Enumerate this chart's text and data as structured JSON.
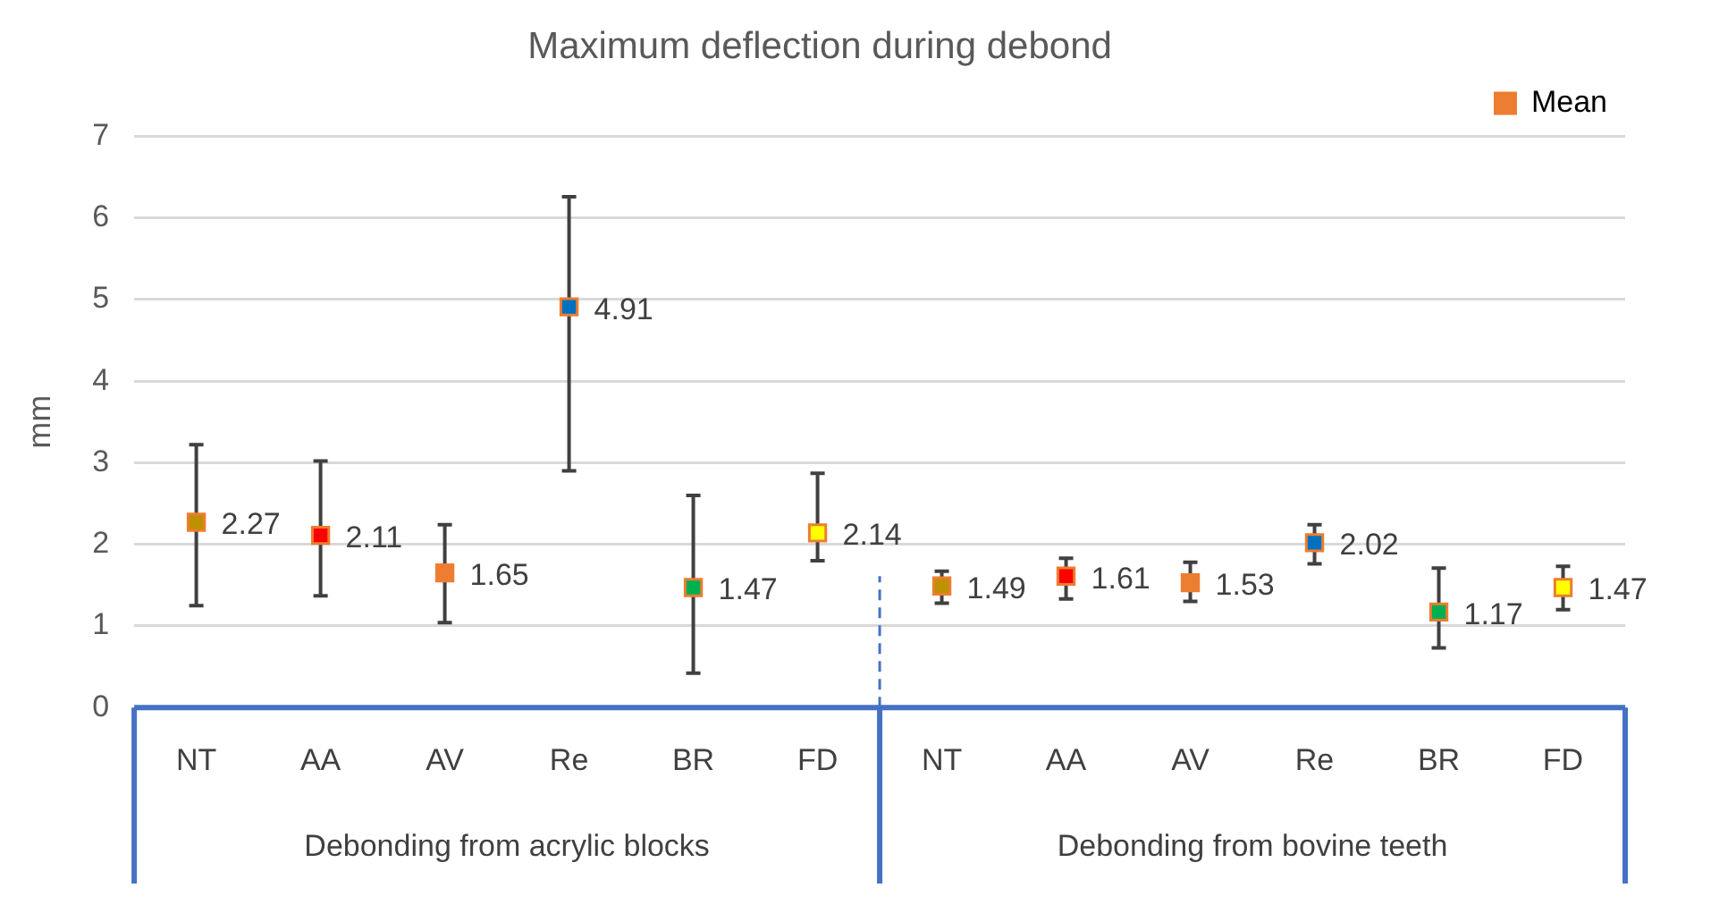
{
  "chart_data": {
    "type": "scatter",
    "title": "Maximum deflection during debond",
    "ylabel": "mm",
    "categories": [
      "NT",
      "AA",
      "AV",
      "Re",
      "BR",
      "FD",
      "NT",
      "AA",
      "AV",
      "Re",
      "BR",
      "FD"
    ],
    "series": [
      {
        "name": "Mean",
        "color": "#ed7d31",
        "colors": [
          "#bf9000",
          "#ff0000",
          "#ed7d31",
          "#0070c0",
          "#00b050",
          "#ffff00",
          "#bf9000",
          "#ff0000",
          "#ed7d31",
          "#0070c0",
          "#00b050",
          "#ffff00"
        ],
        "values": [
          2.27,
          2.11,
          1.65,
          4.91,
          1.47,
          2.14,
          1.49,
          1.61,
          1.53,
          2.02,
          1.17,
          1.47
        ],
        "errors": [
          [
            1.25,
            3.22
          ],
          [
            1.37,
            3.02
          ],
          [
            1.04,
            2.24
          ],
          [
            2.9,
            6.26
          ],
          [
            0.42,
            2.6
          ],
          [
            1.8,
            2.87
          ],
          [
            1.28,
            1.67
          ],
          [
            1.33,
            1.83
          ],
          [
            1.3,
            1.78
          ],
          [
            1.76,
            2.24
          ],
          [
            0.73,
            1.71
          ],
          [
            1.2,
            1.73
          ]
        ]
      }
    ],
    "annotations": [
      "Debonding from acrylic blocks",
      "Debonding from bovine teeth"
    ],
    "ylim": [
      0,
      7
    ],
    "yticks": [
      0,
      1,
      2,
      3,
      4,
      5,
      6,
      7
    ],
    "grid": "y",
    "legend": "top right",
    "marker": "square",
    "data_labels": true
  }
}
